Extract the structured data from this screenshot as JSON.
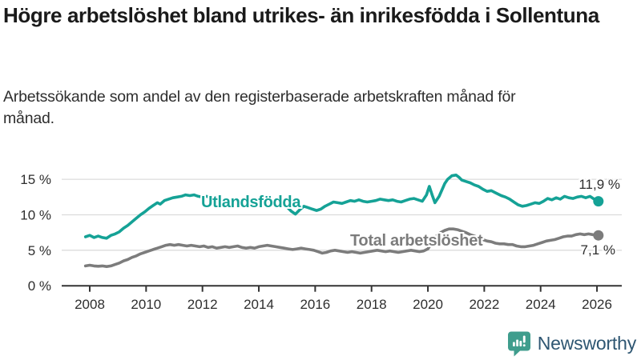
{
  "header": {
    "title": "Högre arbetslöshet bland utrikes- än inrikesfödda i Sollentuna",
    "subtitle": "Arbetssökande som andel av den registerbaserade arbetskraften månad för månad."
  },
  "footer": {
    "brand": "Newsworthy",
    "logo_icon": "bar-chart-speech-bubble-icon",
    "logo_color": "#3f9d8d",
    "brand_text_color": "#2e5672"
  },
  "colors": {
    "accent_teal": "#15a296",
    "series_gray": "#7c7c7c",
    "axis": "#333333",
    "grid": "#dcdcdc",
    "text": "#2e2e2e"
  },
  "chart_data": {
    "type": "line",
    "unit": "%",
    "grid": true,
    "legend": "inline-labels",
    "xlim": [
      2007.3,
      2026.9
    ],
    "ylim": [
      0,
      16.6
    ],
    "x_ticks": [
      "2008",
      "2010",
      "2012",
      "2014",
      "2016",
      "2018",
      "2020",
      "2022",
      "2024",
      "2026"
    ],
    "x_tick_values": [
      2008,
      2010,
      2012,
      2014,
      2016,
      2018,
      2020,
      2022,
      2024,
      2026
    ],
    "y_ticks": [
      {
        "value": 0,
        "label": "0 %"
      },
      {
        "value": 5,
        "label": "5 %"
      },
      {
        "value": 10,
        "label": "10 %"
      },
      {
        "value": 15,
        "label": "15 %"
      }
    ],
    "series": [
      {
        "name": "Utlandsfödda",
        "color": "#15a296",
        "end_label": "11,9 %",
        "end_value": 11.9,
        "points": [
          [
            2007.85,
            6.9
          ],
          [
            2008.0,
            7.1
          ],
          [
            2008.15,
            6.8
          ],
          [
            2008.3,
            7.0
          ],
          [
            2008.45,
            6.8
          ],
          [
            2008.6,
            6.7
          ],
          [
            2008.75,
            7.1
          ],
          [
            2008.9,
            7.3
          ],
          [
            2009.05,
            7.6
          ],
          [
            2009.2,
            8.1
          ],
          [
            2009.35,
            8.5
          ],
          [
            2009.5,
            9.0
          ],
          [
            2009.65,
            9.5
          ],
          [
            2009.8,
            10.0
          ],
          [
            2009.95,
            10.4
          ],
          [
            2010.1,
            10.9
          ],
          [
            2010.25,
            11.3
          ],
          [
            2010.4,
            11.7
          ],
          [
            2010.5,
            11.5
          ],
          [
            2010.65,
            12.0
          ],
          [
            2010.8,
            12.2
          ],
          [
            2010.95,
            12.4
          ],
          [
            2011.1,
            12.5
          ],
          [
            2011.25,
            12.6
          ],
          [
            2011.4,
            12.8
          ],
          [
            2011.55,
            12.7
          ],
          [
            2011.7,
            12.8
          ],
          [
            2011.85,
            12.6
          ],
          [
            2012.0,
            12.5
          ],
          [
            2012.15,
            12.6
          ],
          [
            2012.3,
            12.4
          ],
          [
            2012.45,
            12.5
          ],
          [
            2012.6,
            12.3
          ],
          [
            2012.75,
            12.2
          ],
          [
            2012.9,
            12.0
          ],
          [
            2013.05,
            12.2
          ],
          [
            2013.2,
            12.1
          ],
          [
            2013.35,
            11.9
          ],
          [
            2013.5,
            12.0
          ],
          [
            2013.65,
            11.8
          ],
          [
            2013.8,
            11.9
          ],
          [
            2013.95,
            11.8
          ],
          [
            2014.1,
            11.9
          ],
          [
            2014.25,
            11.7
          ],
          [
            2014.4,
            11.8
          ],
          [
            2014.55,
            11.6
          ],
          [
            2014.7,
            11.7
          ],
          [
            2014.85,
            11.5
          ],
          [
            2015.0,
            11.1
          ],
          [
            2015.15,
            10.5
          ],
          [
            2015.3,
            10.1
          ],
          [
            2015.45,
            10.7
          ],
          [
            2015.6,
            11.2
          ],
          [
            2015.75,
            11.0
          ],
          [
            2015.9,
            10.8
          ],
          [
            2016.05,
            10.6
          ],
          [
            2016.2,
            10.8
          ],
          [
            2016.35,
            11.2
          ],
          [
            2016.5,
            11.5
          ],
          [
            2016.65,
            11.8
          ],
          [
            2016.8,
            11.7
          ],
          [
            2016.95,
            11.6
          ],
          [
            2017.1,
            11.8
          ],
          [
            2017.25,
            12.0
          ],
          [
            2017.4,
            11.9
          ],
          [
            2017.55,
            12.1
          ],
          [
            2017.7,
            11.9
          ],
          [
            2017.85,
            11.8
          ],
          [
            2018.0,
            11.9
          ],
          [
            2018.15,
            12.0
          ],
          [
            2018.3,
            12.2
          ],
          [
            2018.45,
            12.1
          ],
          [
            2018.6,
            12.0
          ],
          [
            2018.75,
            12.1
          ],
          [
            2018.9,
            11.9
          ],
          [
            2019.05,
            11.8
          ],
          [
            2019.2,
            12.0
          ],
          [
            2019.35,
            12.2
          ],
          [
            2019.5,
            12.3
          ],
          [
            2019.65,
            12.1
          ],
          [
            2019.8,
            11.9
          ],
          [
            2019.95,
            12.8
          ],
          [
            2020.05,
            14.0
          ],
          [
            2020.15,
            12.8
          ],
          [
            2020.25,
            11.7
          ],
          [
            2020.4,
            12.6
          ],
          [
            2020.5,
            13.5
          ],
          [
            2020.6,
            14.4
          ],
          [
            2020.7,
            15.0
          ],
          [
            2020.85,
            15.5
          ],
          [
            2021.0,
            15.6
          ],
          [
            2021.1,
            15.3
          ],
          [
            2021.2,
            14.9
          ],
          [
            2021.35,
            14.7
          ],
          [
            2021.5,
            14.5
          ],
          [
            2021.65,
            14.2
          ],
          [
            2021.8,
            14.0
          ],
          [
            2021.95,
            13.6
          ],
          [
            2022.1,
            13.3
          ],
          [
            2022.25,
            13.4
          ],
          [
            2022.4,
            13.1
          ],
          [
            2022.6,
            12.7
          ],
          [
            2022.75,
            12.5
          ],
          [
            2022.9,
            12.2
          ],
          [
            2023.05,
            11.8
          ],
          [
            2023.2,
            11.4
          ],
          [
            2023.35,
            11.2
          ],
          [
            2023.5,
            11.3
          ],
          [
            2023.65,
            11.5
          ],
          [
            2023.8,
            11.7
          ],
          [
            2023.95,
            11.6
          ],
          [
            2024.1,
            11.9
          ],
          [
            2024.25,
            12.3
          ],
          [
            2024.4,
            12.1
          ],
          [
            2024.55,
            12.4
          ],
          [
            2024.7,
            12.2
          ],
          [
            2024.85,
            12.6
          ],
          [
            2025.0,
            12.4
          ],
          [
            2025.15,
            12.3
          ],
          [
            2025.3,
            12.5
          ],
          [
            2025.45,
            12.6
          ],
          [
            2025.6,
            12.4
          ],
          [
            2025.75,
            12.6
          ],
          [
            2025.9,
            12.2
          ],
          [
            2026.05,
            11.9
          ]
        ]
      },
      {
        "name": "Total arbetslöshet",
        "color": "#7c7c7c",
        "end_label": "7,1 %",
        "end_value": 7.1,
        "points": [
          [
            2007.85,
            2.8
          ],
          [
            2008.0,
            2.9
          ],
          [
            2008.15,
            2.8
          ],
          [
            2008.3,
            2.75
          ],
          [
            2008.45,
            2.8
          ],
          [
            2008.6,
            2.7
          ],
          [
            2008.75,
            2.8
          ],
          [
            2008.9,
            3.0
          ],
          [
            2009.05,
            3.2
          ],
          [
            2009.2,
            3.5
          ],
          [
            2009.35,
            3.7
          ],
          [
            2009.5,
            4.0
          ],
          [
            2009.65,
            4.2
          ],
          [
            2009.8,
            4.5
          ],
          [
            2009.95,
            4.7
          ],
          [
            2010.1,
            4.9
          ],
          [
            2010.25,
            5.1
          ],
          [
            2010.4,
            5.3
          ],
          [
            2010.55,
            5.5
          ],
          [
            2010.7,
            5.7
          ],
          [
            2010.85,
            5.8
          ],
          [
            2011.0,
            5.7
          ],
          [
            2011.15,
            5.8
          ],
          [
            2011.3,
            5.7
          ],
          [
            2011.45,
            5.6
          ],
          [
            2011.6,
            5.7
          ],
          [
            2011.75,
            5.6
          ],
          [
            2011.9,
            5.5
          ],
          [
            2012.05,
            5.6
          ],
          [
            2012.2,
            5.4
          ],
          [
            2012.35,
            5.5
          ],
          [
            2012.5,
            5.3
          ],
          [
            2012.65,
            5.4
          ],
          [
            2012.8,
            5.5
          ],
          [
            2012.95,
            5.4
          ],
          [
            2013.1,
            5.5
          ],
          [
            2013.25,
            5.6
          ],
          [
            2013.4,
            5.4
          ],
          [
            2013.55,
            5.3
          ],
          [
            2013.7,
            5.4
          ],
          [
            2013.85,
            5.3
          ],
          [
            2014.0,
            5.5
          ],
          [
            2014.15,
            5.6
          ],
          [
            2014.3,
            5.7
          ],
          [
            2014.45,
            5.6
          ],
          [
            2014.6,
            5.5
          ],
          [
            2014.75,
            5.4
          ],
          [
            2014.9,
            5.3
          ],
          [
            2015.05,
            5.2
          ],
          [
            2015.2,
            5.1
          ],
          [
            2015.35,
            5.2
          ],
          [
            2015.5,
            5.3
          ],
          [
            2015.65,
            5.2
          ],
          [
            2015.8,
            5.1
          ],
          [
            2015.95,
            5.0
          ],
          [
            2016.1,
            4.8
          ],
          [
            2016.25,
            4.6
          ],
          [
            2016.4,
            4.7
          ],
          [
            2016.55,
            4.9
          ],
          [
            2016.7,
            5.0
          ],
          [
            2016.85,
            4.9
          ],
          [
            2017.0,
            4.8
          ],
          [
            2017.15,
            4.7
          ],
          [
            2017.3,
            4.8
          ],
          [
            2017.45,
            4.7
          ],
          [
            2017.6,
            4.6
          ],
          [
            2017.75,
            4.7
          ],
          [
            2017.9,
            4.8
          ],
          [
            2018.05,
            4.9
          ],
          [
            2018.2,
            5.0
          ],
          [
            2018.35,
            4.9
          ],
          [
            2018.5,
            4.8
          ],
          [
            2018.65,
            4.9
          ],
          [
            2018.8,
            4.8
          ],
          [
            2018.95,
            4.7
          ],
          [
            2019.1,
            4.8
          ],
          [
            2019.25,
            4.9
          ],
          [
            2019.4,
            5.0
          ],
          [
            2019.55,
            4.9
          ],
          [
            2019.7,
            4.8
          ],
          [
            2019.85,
            4.9
          ],
          [
            2020.0,
            5.2
          ],
          [
            2020.1,
            5.8
          ],
          [
            2020.2,
            6.5
          ],
          [
            2020.3,
            7.0
          ],
          [
            2020.45,
            7.5
          ],
          [
            2020.6,
            7.8
          ],
          [
            2020.75,
            8.0
          ],
          [
            2020.9,
            8.0
          ],
          [
            2021.05,
            7.9
          ],
          [
            2021.2,
            7.7
          ],
          [
            2021.35,
            7.5
          ],
          [
            2021.5,
            7.2
          ],
          [
            2021.65,
            7.0
          ],
          [
            2021.8,
            6.8
          ],
          [
            2021.95,
            6.5
          ],
          [
            2022.1,
            6.3
          ],
          [
            2022.25,
            6.2
          ],
          [
            2022.4,
            6.0
          ],
          [
            2022.55,
            5.9
          ],
          [
            2022.7,
            5.9
          ],
          [
            2022.85,
            5.8
          ],
          [
            2023.0,
            5.8
          ],
          [
            2023.15,
            5.6
          ],
          [
            2023.3,
            5.5
          ],
          [
            2023.45,
            5.5
          ],
          [
            2023.6,
            5.6
          ],
          [
            2023.75,
            5.7
          ],
          [
            2023.9,
            5.9
          ],
          [
            2024.05,
            6.1
          ],
          [
            2024.2,
            6.3
          ],
          [
            2024.35,
            6.4
          ],
          [
            2024.5,
            6.5
          ],
          [
            2024.65,
            6.7
          ],
          [
            2024.8,
            6.9
          ],
          [
            2024.95,
            7.0
          ],
          [
            2025.1,
            7.0
          ],
          [
            2025.25,
            7.2
          ],
          [
            2025.4,
            7.3
          ],
          [
            2025.55,
            7.2
          ],
          [
            2025.7,
            7.3
          ],
          [
            2025.85,
            7.2
          ],
          [
            2026.05,
            7.1
          ]
        ]
      }
    ]
  }
}
